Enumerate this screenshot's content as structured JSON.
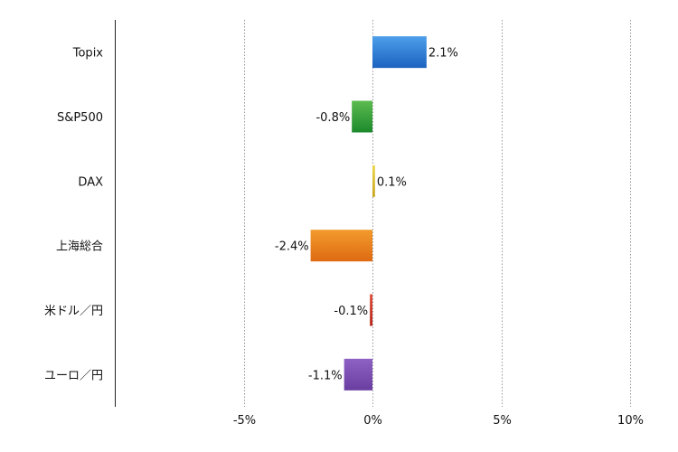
{
  "chart_data": {
    "type": "bar",
    "orientation": "horizontal",
    "categories": [
      "Topix",
      "S&P500",
      "DAX",
      "上海総合",
      "米ドル／円",
      "ユーロ／円"
    ],
    "values": [
      2.1,
      -0.8,
      0.1,
      -2.4,
      -0.1,
      -1.1
    ],
    "data_labels": [
      "2.1%",
      "-0.8%",
      "0.1%",
      "-2.4%",
      "-0.1%",
      "-1.1%"
    ],
    "colors": [
      [
        "#4d9fea",
        "#1c62c0"
      ],
      [
        "#5cbb4f",
        "#1b8a2c"
      ],
      [
        "#ecd84e",
        "#c9a51e"
      ],
      [
        "#f39b2c",
        "#de6a12"
      ],
      [
        "#e0503a",
        "#b82418"
      ],
      [
        "#8e62c4",
        "#6a3ea0"
      ]
    ],
    "xlim": [
      -10,
      10
    ],
    "x_ticks": [
      -5,
      0,
      5,
      10
    ],
    "x_tick_labels": [
      "-5%",
      "0%",
      "5%",
      "10%"
    ],
    "grid": "vertical dotted",
    "title": "",
    "xlabel": "",
    "ylabel": "",
    "legend": "none"
  }
}
